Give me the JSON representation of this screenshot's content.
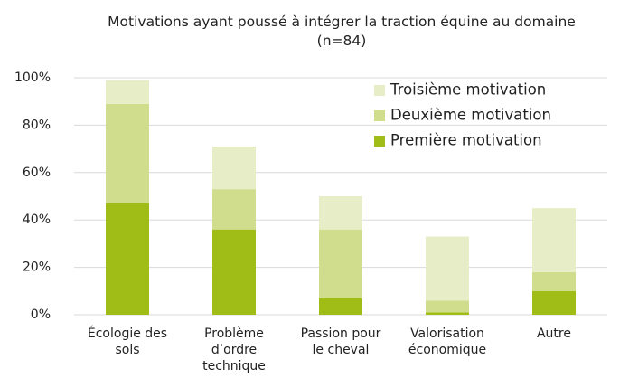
{
  "chart_data": {
    "type": "stacked_bar",
    "title": "Motivations ayant poussé à intégrer la traction équine au domaine (n=84)",
    "categories": [
      "Écologie des sols",
      "Problème d’ordre technique",
      "Passion pour le cheval",
      "Valorisation économique",
      "Autre"
    ],
    "series": [
      {
        "name": "Première motivation",
        "color": "#a0bd17",
        "values": [
          47,
          36,
          7,
          1,
          10
        ]
      },
      {
        "name": "Deuxième motivation",
        "color": "#cfdd8c",
        "values": [
          42,
          17,
          29,
          5,
          8
        ]
      },
      {
        "name": "Troisième motivation",
        "color": "#e7eec7",
        "values": [
          10,
          18,
          14,
          27,
          27
        ]
      }
    ],
    "ylim": [
      0,
      100
    ],
    "yticks": [
      {
        "value": 0,
        "label": "0%"
      },
      {
        "value": 20,
        "label": "20%"
      },
      {
        "value": 40,
        "label": "40%"
      },
      {
        "value": 60,
        "label": "60%"
      },
      {
        "value": 80,
        "label": "80%"
      },
      {
        "value": 100,
        "label": "100%"
      }
    ],
    "grid": true,
    "legend": "top-right"
  }
}
